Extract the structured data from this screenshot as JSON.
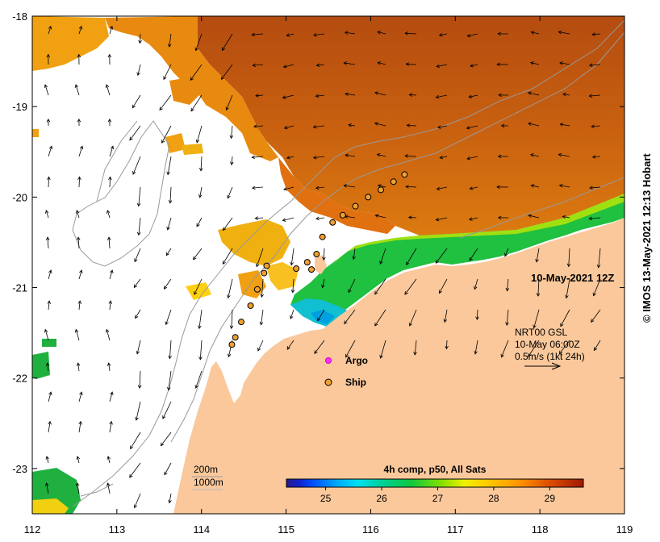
{
  "map": {
    "date_label": "10-May-2021 12Z",
    "colorbar": {
      "title": "4h comp, p50, All Sats",
      "ticks": [
        25,
        26,
        27,
        28,
        29
      ],
      "range": [
        24.3,
        29.6
      ],
      "colors": [
        "#000066",
        "#0000cc",
        "#0066ff",
        "#00ccff",
        "#00cc66",
        "#33cc00",
        "#ccff00",
        "#ffcc00",
        "#ff9900",
        "#dd5500",
        "#993300"
      ]
    },
    "axes": {
      "lon_range": [
        112,
        119
      ],
      "lat_range": [
        -23.5,
        -18
      ],
      "lon_ticks": [
        112,
        113,
        114,
        115,
        116,
        117,
        118,
        119
      ],
      "lat_ticks": [
        -18,
        -19,
        -20,
        -21,
        -22,
        -23
      ]
    },
    "legend": {
      "argo_label": "Argo",
      "ship_label": "Ship"
    },
    "currents": {
      "product": "NRT00 GSL",
      "date": "10-May 06:00Z",
      "scale": "0.5m/s (1kt 24h)"
    },
    "isobaths": {
      "shallow": "200m",
      "deep": "1000m"
    },
    "credit": "© IMOS 13-May-2021 12:13 Hobart",
    "colors": {
      "land": "#fac89b",
      "no_data": "#ffffff",
      "isobath": "#999999"
    },
    "ship_positions": [
      {
        "lon": 116.4,
        "lat": -19.75
      },
      {
        "lon": 116.27,
        "lat": -19.83
      },
      {
        "lon": 116.12,
        "lat": -19.92
      },
      {
        "lon": 115.97,
        "lat": -20.0
      },
      {
        "lon": 115.82,
        "lat": -20.1
      },
      {
        "lon": 115.67,
        "lat": -20.2
      },
      {
        "lon": 115.55,
        "lat": -20.28
      },
      {
        "lon": 115.43,
        "lat": -20.44
      },
      {
        "lon": 115.36,
        "lat": -20.63
      },
      {
        "lon": 115.25,
        "lat": -20.72
      },
      {
        "lon": 115.12,
        "lat": -20.79
      },
      {
        "lon": 115.3,
        "lat": -20.8
      },
      {
        "lon": 114.77,
        "lat": -20.76
      },
      {
        "lon": 114.74,
        "lat": -20.84
      },
      {
        "lon": 114.66,
        "lat": -21.02
      },
      {
        "lon": 114.58,
        "lat": -21.2
      },
      {
        "lon": 114.47,
        "lat": -21.38
      },
      {
        "lon": 114.4,
        "lat": -21.55
      },
      {
        "lon": 114.36,
        "lat": -21.63
      }
    ]
  }
}
